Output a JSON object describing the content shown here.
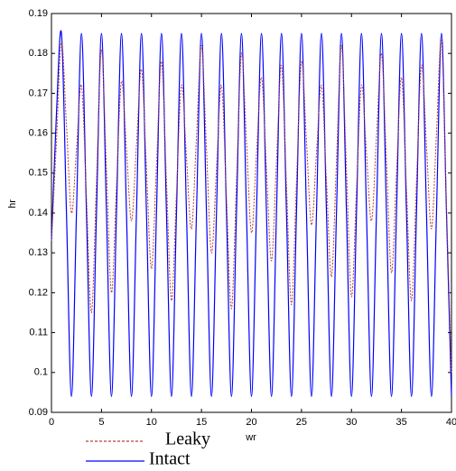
{
  "chart_data": {
    "type": "line",
    "xlabel": "wr",
    "ylabel": "hr",
    "x": [
      0,
      0.5,
      1,
      1.5,
      2,
      2.5,
      3,
      3.5,
      4,
      4.5,
      5,
      5.5,
      6,
      6.5,
      7,
      7.5,
      8,
      8.5,
      9,
      9.5,
      10,
      10.5,
      11,
      11.5,
      12,
      12.5,
      13,
      13.5,
      14,
      14.5,
      15,
      15.5,
      16,
      16.5,
      17,
      17.5,
      18,
      18.5,
      19,
      19.5,
      20,
      20.5,
      21,
      21.5,
      22,
      22.5,
      23,
      23.5,
      24,
      24.5,
      25,
      25.5,
      26,
      26.5,
      27,
      27.5,
      28,
      28.5,
      29,
      29.5,
      30,
      30.5,
      31,
      31.5,
      32,
      32.5,
      33,
      33.5,
      34,
      34.5,
      35,
      35.5,
      36,
      36.5,
      37,
      37.5,
      38,
      38.5,
      39,
      39.5,
      40
    ],
    "series": [
      {
        "name": "Leaky",
        "color": "#b5442c",
        "dashed": true,
        "values": [
          0.133,
          0.158,
          0.183,
          0.162,
          0.14,
          0.156,
          0.172,
          0.144,
          0.115,
          0.148,
          0.181,
          0.151,
          0.12,
          0.147,
          0.173,
          0.156,
          0.138,
          0.157,
          0.176,
          0.151,
          0.126,
          0.152,
          0.178,
          0.148,
          0.118,
          0.145,
          0.172,
          0.154,
          0.136,
          0.159,
          0.182,
          0.156,
          0.13,
          0.151,
          0.172,
          0.144,
          0.116,
          0.148,
          0.18,
          0.158,
          0.135,
          0.155,
          0.174,
          0.151,
          0.128,
          0.153,
          0.177,
          0.147,
          0.117,
          0.148,
          0.178,
          0.158,
          0.137,
          0.155,
          0.172,
          0.148,
          0.124,
          0.153,
          0.182,
          0.151,
          0.119,
          0.146,
          0.172,
          0.155,
          0.138,
          0.159,
          0.18,
          0.153,
          0.125,
          0.15,
          0.174,
          0.146,
          0.118,
          0.148,
          0.177,
          0.157,
          0.136,
          0.16,
          0.183,
          0.142,
          0.1
        ]
      },
      {
        "name": "Intact",
        "color": "#0000ff",
        "dashed": false,
        "values": [
          0.133,
          0.165,
          0.185,
          0.14,
          0.094,
          0.14,
          0.185,
          0.14,
          0.094,
          0.14,
          0.185,
          0.14,
          0.094,
          0.14,
          0.185,
          0.14,
          0.094,
          0.14,
          0.185,
          0.14,
          0.094,
          0.14,
          0.185,
          0.14,
          0.094,
          0.14,
          0.185,
          0.14,
          0.094,
          0.14,
          0.185,
          0.14,
          0.094,
          0.14,
          0.185,
          0.14,
          0.094,
          0.14,
          0.185,
          0.14,
          0.094,
          0.14,
          0.185,
          0.14,
          0.094,
          0.14,
          0.185,
          0.14,
          0.094,
          0.14,
          0.185,
          0.14,
          0.094,
          0.14,
          0.185,
          0.14,
          0.094,
          0.14,
          0.185,
          0.14,
          0.094,
          0.14,
          0.185,
          0.14,
          0.094,
          0.14,
          0.185,
          0.14,
          0.094,
          0.14,
          0.185,
          0.14,
          0.094,
          0.14,
          0.185,
          0.14,
          0.094,
          0.14,
          0.185,
          0.14,
          0.094
        ]
      }
    ],
    "xlim": [
      0,
      40
    ],
    "xticks": [
      0,
      5,
      10,
      15,
      20,
      25,
      30,
      35,
      40
    ],
    "ylim": [
      0.09,
      0.19
    ],
    "yticks": [
      0.09,
      0.1,
      0.11,
      0.12,
      0.13,
      0.14,
      0.15,
      0.16,
      0.17,
      0.18,
      0.19
    ],
    "grid": false
  }
}
